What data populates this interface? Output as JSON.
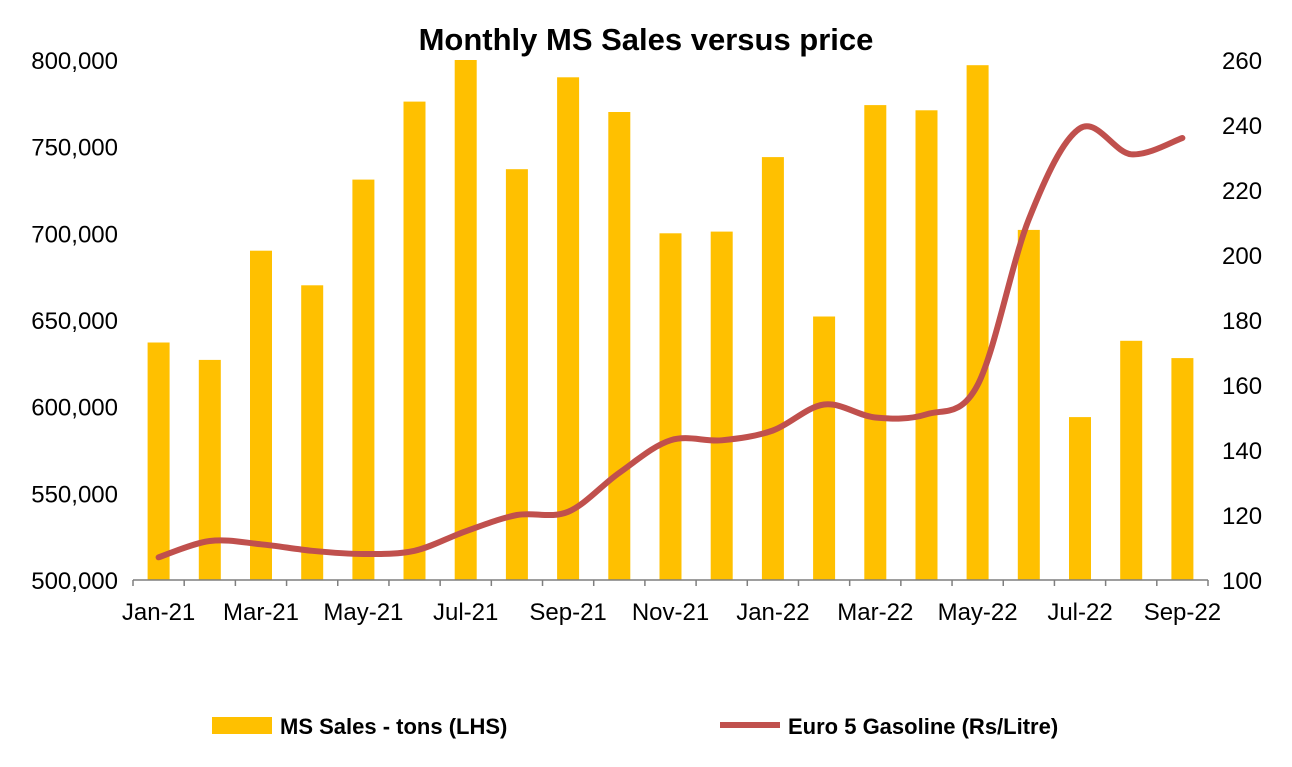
{
  "chart_data": {
    "type": "bar+line",
    "title": "Monthly MS Sales versus price",
    "categories": [
      "Jan-21",
      "Feb-21",
      "Mar-21",
      "Apr-21",
      "May-21",
      "Jun-21",
      "Jul-21",
      "Aug-21",
      "Sep-21",
      "Oct-21",
      "Nov-21",
      "Dec-21",
      "Jan-22",
      "Feb-22",
      "Mar-22",
      "Apr-22",
      "May-22",
      "Jun-22",
      "Jul-22",
      "Aug-22",
      "Sep-22"
    ],
    "x_tick_labels": [
      "Jan-21",
      "Mar-21",
      "May-21",
      "Jul-21",
      "Sep-21",
      "Nov-21",
      "Jan-22",
      "Mar-22",
      "May-22",
      "Jul-22",
      "Sep-22"
    ],
    "series": [
      {
        "name": "MS Sales - tons (LHS)",
        "type": "bar",
        "axis": "left",
        "color": "#FFC000",
        "values": [
          637000,
          627000,
          690000,
          670000,
          731000,
          776000,
          800000,
          737000,
          790000,
          770000,
          700000,
          701000,
          744000,
          652000,
          774000,
          771000,
          797000,
          702000,
          594000,
          638000,
          628000
        ]
      },
      {
        "name": "Euro 5 Gasoline (Rs/Litre)",
        "type": "line",
        "axis": "right",
        "color": "#C0504D",
        "values": [
          107,
          112,
          111,
          109,
          108,
          109,
          115,
          120,
          121,
          133,
          143,
          143,
          146,
          154,
          150,
          151,
          160,
          211,
          239,
          231,
          236
        ]
      }
    ],
    "y_left": {
      "min": 500000,
      "max": 800000,
      "step": 50000,
      "tick_labels": [
        "500,000",
        "550,000",
        "600,000",
        "650,000",
        "700,000",
        "750,000",
        "800,000"
      ]
    },
    "y_right": {
      "min": 100,
      "max": 260,
      "step": 20,
      "tick_labels": [
        "100",
        "120",
        "140",
        "160",
        "180",
        "200",
        "220",
        "240",
        "260"
      ]
    },
    "legend": {
      "position": "bottom",
      "items": [
        {
          "label": "MS Sales - tons (LHS)",
          "color": "#FFC000"
        },
        {
          "label": "Euro 5 Gasoline (Rs/Litre)",
          "color": "#C0504D"
        }
      ]
    },
    "grid": false
  }
}
